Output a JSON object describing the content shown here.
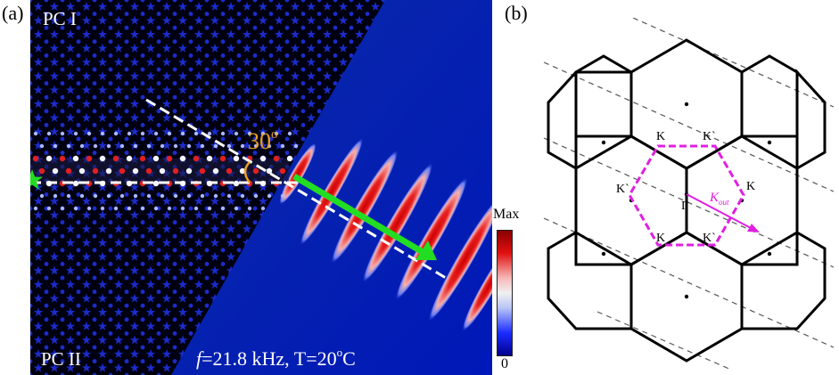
{
  "panel_a": {
    "label": "(a)",
    "region_top": "PC I",
    "region_bottom": "PC II",
    "angle": "30",
    "angle_sup": "o",
    "condition": {
      "f": "f",
      "eq": "=21.8 kHz, T=20",
      "sup": "o",
      "unit": "C"
    },
    "colorbar": {
      "max": "Max",
      "min": "0"
    },
    "colors": {
      "background": "#00139e",
      "field_red": "#e01818",
      "arrow": "#22dd22",
      "angle_text": "#e8a020",
      "guide_line": "#ffffff"
    }
  },
  "panel_b": {
    "label": "(b)",
    "points": {
      "gamma": "Γ",
      "k": "K",
      "k_prime": "K`"
    },
    "k_out_main": "K",
    "k_out_sub": "out",
    "colors": {
      "hexagon": "#000000",
      "first_zone": "#e020e0",
      "dash": "#555555"
    }
  }
}
